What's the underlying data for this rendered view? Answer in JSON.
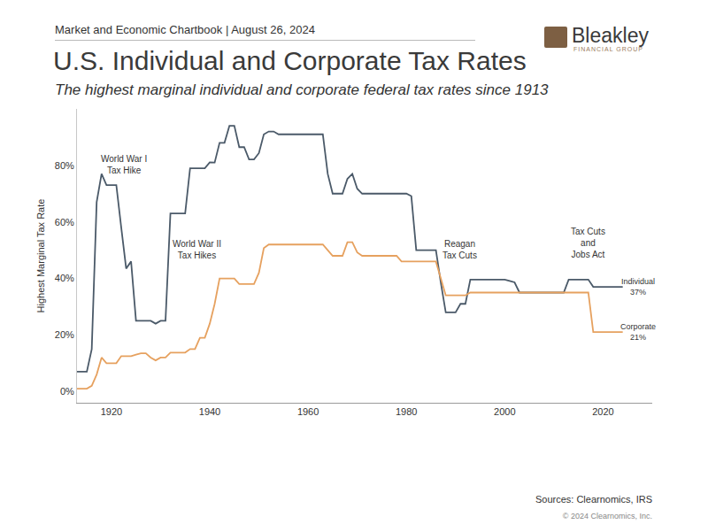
{
  "header": {
    "chartbook": "Market and Economic Chartbook | August 26, 2024",
    "logo": "Bleakley",
    "logo_sub": "FINANCIAL GROUP"
  },
  "chart_data": {
    "type": "line",
    "title": "U.S. Individual and Corporate Tax Rates",
    "subtitle": "The highest marginal individual and corporate federal tax rates since 1913",
    "y_label": "Highest Marginal Tax Rate",
    "x": [
      1913,
      1914,
      1915,
      1916,
      1917,
      1918,
      1919,
      1920,
      1921,
      1922,
      1923,
      1924,
      1925,
      1926,
      1927,
      1928,
      1929,
      1930,
      1931,
      1932,
      1933,
      1934,
      1935,
      1936,
      1937,
      1938,
      1939,
      1940,
      1941,
      1942,
      1943,
      1944,
      1945,
      1946,
      1947,
      1948,
      1949,
      1950,
      1951,
      1952,
      1953,
      1954,
      1955,
      1956,
      1957,
      1958,
      1959,
      1960,
      1961,
      1962,
      1963,
      1964,
      1965,
      1966,
      1967,
      1968,
      1969,
      1970,
      1971,
      1972,
      1973,
      1974,
      1975,
      1976,
      1977,
      1978,
      1979,
      1980,
      1981,
      1982,
      1983,
      1984,
      1985,
      1986,
      1987,
      1988,
      1989,
      1990,
      1991,
      1992,
      1993,
      1994,
      1995,
      1996,
      1997,
      1998,
      1999,
      2000,
      2001,
      2002,
      2003,
      2004,
      2005,
      2006,
      2007,
      2008,
      2009,
      2010,
      2011,
      2012,
      2013,
      2014,
      2015,
      2016,
      2017,
      2018,
      2019,
      2020,
      2021,
      2022,
      2023,
      2024
    ],
    "series": [
      {
        "name": "Individual",
        "color": "#4b5a69",
        "values": [
          7,
          7,
          7,
          15,
          67,
          77,
          73,
          73,
          73,
          58,
          43.5,
          46,
          25,
          25,
          25,
          25,
          24,
          25,
          25,
          63,
          63,
          63,
          63,
          79,
          79,
          79,
          79,
          81.1,
          81,
          88,
          88,
          94,
          94,
          86.45,
          86.45,
          82.13,
          82.13,
          84.36,
          91,
          92,
          92,
          91,
          91,
          91,
          91,
          91,
          91,
          91,
          91,
          91,
          91,
          77,
          70,
          70,
          70,
          75.25,
          77,
          71.75,
          70,
          70,
          70,
          70,
          70,
          70,
          70,
          70,
          70,
          70,
          69.13,
          50,
          50,
          50,
          50,
          50,
          38.5,
          28,
          28,
          28,
          31,
          31,
          39.6,
          39.6,
          39.6,
          39.6,
          39.6,
          39.6,
          39.6,
          39.6,
          39.1,
          38.6,
          35,
          35,
          35,
          35,
          35,
          35,
          35,
          35,
          35,
          35,
          39.6,
          39.6,
          39.6,
          39.6,
          39.6,
          37,
          37,
          37,
          37,
          37,
          37,
          37
        ]
      },
      {
        "name": "Corporate",
        "color": "#e6a15f",
        "values": [
          1,
          1,
          1,
          2,
          6,
          12,
          10,
          10,
          10,
          12.5,
          12.5,
          12.5,
          13,
          13.5,
          13.5,
          12,
          11,
          12,
          12,
          13.75,
          13.75,
          13.75,
          13.75,
          15,
          15,
          19,
          19,
          24,
          31,
          40,
          40,
          40,
          40,
          38,
          38,
          38,
          38,
          42,
          50.75,
          52,
          52,
          52,
          52,
          52,
          52,
          52,
          52,
          52,
          52,
          52,
          52,
          50,
          48,
          48,
          48,
          52.8,
          52.8,
          49.2,
          48,
          48,
          48,
          48,
          48,
          48,
          48,
          48,
          46,
          46,
          46,
          46,
          46,
          46,
          46,
          46,
          40,
          34,
          34,
          34,
          34,
          34,
          35,
          35,
          35,
          35,
          35,
          35,
          35,
          35,
          35,
          35,
          35,
          35,
          35,
          35,
          35,
          35,
          35,
          35,
          35,
          35,
          35,
          35,
          35,
          35,
          35,
          21,
          21,
          21,
          21,
          21,
          21,
          21
        ]
      }
    ],
    "xlim": [
      1913,
      2030
    ],
    "xticks": [
      1920,
      1940,
      1960,
      1980,
      2000,
      2020
    ],
    "ylim": [
      -4,
      100
    ],
    "yticks": [
      {
        "value": 0,
        "label": "0%"
      },
      {
        "value": 20,
        "label": "20%"
      },
      {
        "value": 40,
        "label": "40%"
      },
      {
        "value": 60,
        "label": "60%"
      },
      {
        "value": 80,
        "label": "80%"
      }
    ],
    "grid": false,
    "annotations": [
      "World War I\nTax Hike",
      "World War II\nTax Hikes",
      "Reagan\nTax Cuts",
      "Tax Cuts\nand\nJobs Act",
      "Individual\n37%",
      "Corporate\n21%"
    ]
  },
  "footer": {
    "sources": "Sources: Clearnomics, IRS",
    "copyright": "© 2024 Clearnomics, Inc."
  }
}
